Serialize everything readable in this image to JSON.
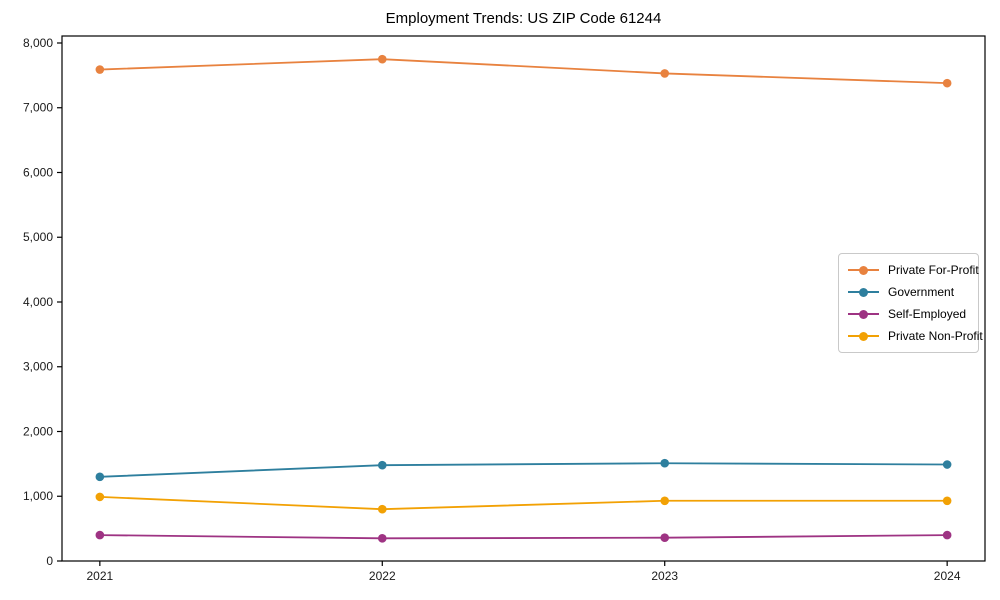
{
  "title": "Employment Trends: US ZIP Code 61244",
  "chart_data": {
    "type": "line",
    "title": "Employment Trends: US ZIP Code 61244",
    "x": [
      2021,
      2022,
      2023,
      2024
    ],
    "xtick_labels": [
      "2021",
      "2022",
      "2023",
      "2024"
    ],
    "series": [
      {
        "name": "Private For-Profit",
        "color": "#e8823f",
        "values": [
          7590,
          7750,
          7530,
          7380
        ]
      },
      {
        "name": "Government",
        "color": "#2e7f9e",
        "values": [
          1300,
          1480,
          1510,
          1490
        ]
      },
      {
        "name": "Self-Employed",
        "color": "#9e3383",
        "values": [
          400,
          350,
          360,
          400
        ]
      },
      {
        "name": "Private Non-Profit",
        "color": "#f2a104",
        "values": [
          990,
          800,
          930,
          930
        ]
      }
    ],
    "ylim": [
      0,
      8108
    ],
    "yticks": [
      0,
      1000,
      2000,
      3000,
      4000,
      5000,
      6000,
      7000,
      8000
    ],
    "ytick_labels": [
      "0",
      "1,000",
      "2,000",
      "3,000",
      "4,000",
      "5,000",
      "6,000",
      "7,000",
      "8,000"
    ],
    "xlabel": "",
    "ylabel": "",
    "grid": false,
    "legend_position": "middle-right",
    "axis_color": "#000000",
    "tick_label_color": "#1a1a1a"
  }
}
